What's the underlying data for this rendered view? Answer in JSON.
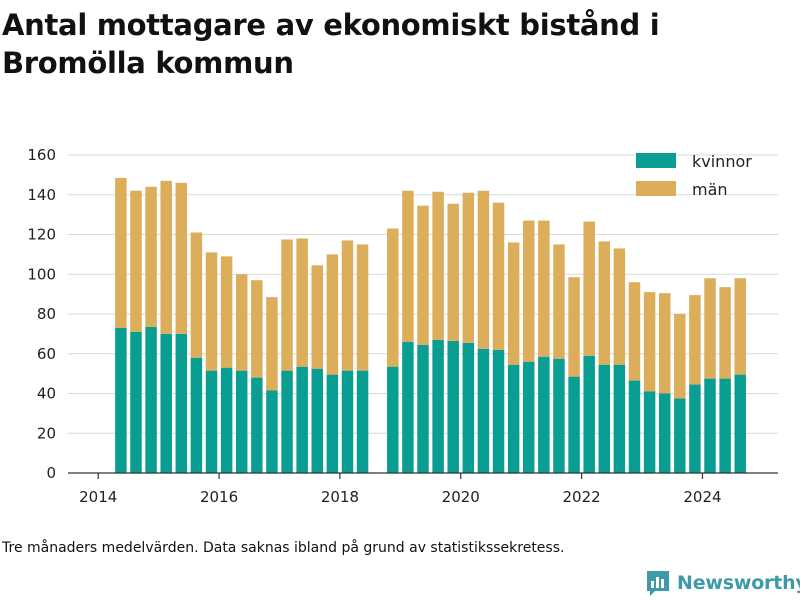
{
  "title": "Antal mottagare av ekonomiskt bistånd i Bromölla kommun",
  "footnote": "Tre månaders medelvärden. Data saknas ibland på grund av statistikssekretess.",
  "brand": {
    "name": "Newsworthy",
    "icon": "bar-chart-logo-icon",
    "color": "#3d9aa8"
  },
  "colors": {
    "kvinnor": "#0a9e93",
    "man": "#dcad5a",
    "grid": "#d9d9d9",
    "axis": "#333333"
  },
  "chart_data": {
    "type": "bar",
    "stacked": true,
    "title": "Antal mottagare av ekonomiskt bistånd i Bromölla kommun",
    "xlabel": "",
    "ylabel": "",
    "ylim": [
      0,
      160
    ],
    "yticks": [
      0,
      20,
      40,
      60,
      80,
      100,
      120,
      140,
      160
    ],
    "xlim": [
      2013.5,
      2025.25
    ],
    "xticks": [
      2014,
      2016,
      2018,
      2020,
      2022,
      2024
    ],
    "grid": true,
    "legend_position": "top-right",
    "x": [
      2014.375,
      2014.625,
      2014.875,
      2015.125,
      2015.375,
      2015.625,
      2015.875,
      2016.125,
      2016.375,
      2016.625,
      2016.875,
      2017.125,
      2017.375,
      2017.625,
      2017.875,
      2018.125,
      2018.375,
      2018.875,
      2019.125,
      2019.375,
      2019.625,
      2019.875,
      2020.125,
      2020.375,
      2020.625,
      2020.875,
      2021.125,
      2021.375,
      2021.625,
      2021.875,
      2022.125,
      2022.375,
      2022.625,
      2022.875,
      2023.125,
      2023.375,
      2023.625,
      2023.875,
      2024.125,
      2024.375,
      2024.625
    ],
    "series": [
      {
        "name": "kvinnor",
        "values": [
          73,
          71,
          73.5,
          70,
          70,
          58,
          51.5,
          53,
          51.5,
          48,
          41.5,
          51.5,
          53.5,
          52.5,
          49.5,
          51.5,
          51.5,
          53.5,
          66,
          64.5,
          67,
          66.5,
          65.5,
          62.5,
          62,
          54.5,
          56,
          58.5,
          57.5,
          48.5,
          59,
          54.5,
          54.5,
          46.5,
          41,
          40,
          37.5,
          44.5,
          47.5,
          47.5,
          49.5
        ]
      },
      {
        "name": "män",
        "values": [
          75.5,
          71,
          70.5,
          77,
          76,
          63,
          59.5,
          56,
          48.5,
          49,
          47,
          66,
          64.5,
          52,
          60.5,
          65.5,
          63.5,
          69.5,
          76,
          70,
          74.5,
          69,
          75.5,
          79.5,
          74,
          61.5,
          71,
          68.5,
          57.5,
          50,
          67.5,
          62,
          58.5,
          49.5,
          50,
          50.5,
          42.5,
          45,
          50.5,
          46,
          48.5
        ]
      }
    ]
  }
}
